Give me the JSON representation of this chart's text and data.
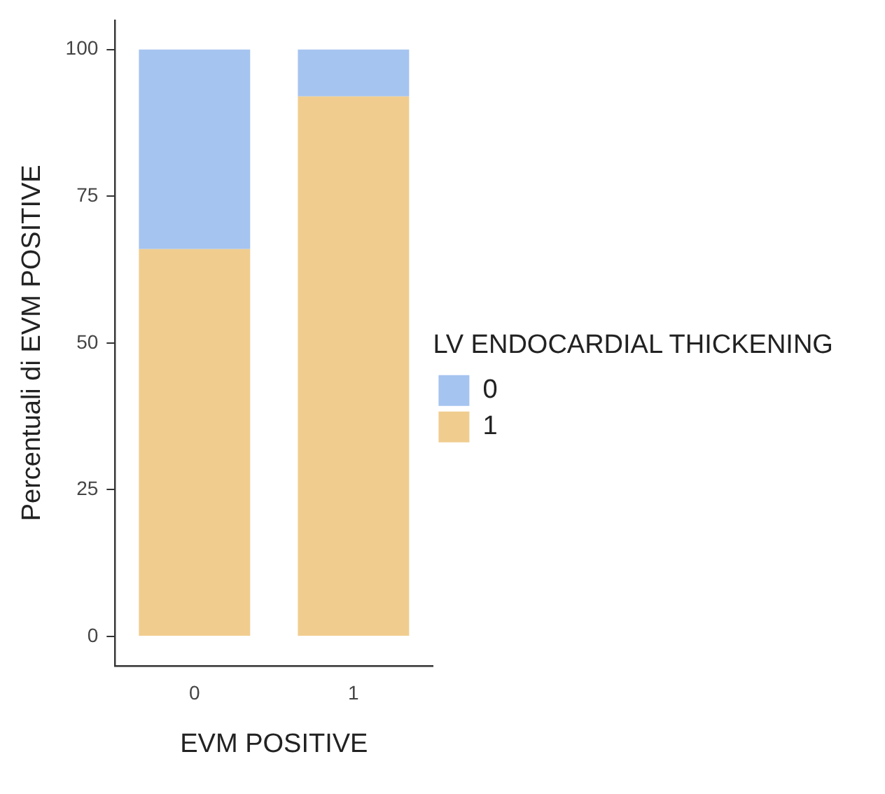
{
  "chart_data": {
    "type": "bar",
    "stacked": true,
    "xlabel": "EVM POSITIVE",
    "ylabel": "Percentuali di EVM POSITIVE",
    "legend_title": "LV ENDOCARDIAL THICKENING",
    "categories": [
      "0",
      "1"
    ],
    "series": [
      {
        "name": "1",
        "color": "#f0cd8f",
        "values": [
          66,
          92
        ]
      },
      {
        "name": "0",
        "color": "#a6c4f0",
        "values": [
          34,
          8
        ]
      }
    ],
    "ylim": [
      -5,
      105
    ],
    "yticks": [
      0,
      25,
      50,
      75,
      100
    ],
    "grid": false,
    "legend": "right"
  }
}
